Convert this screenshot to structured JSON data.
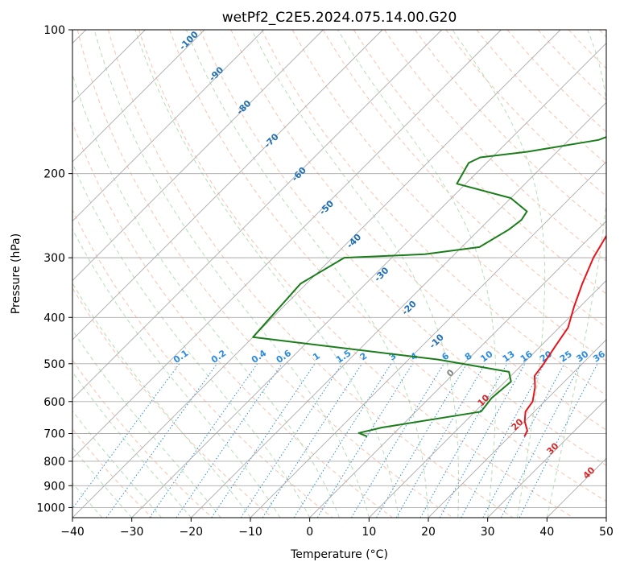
{
  "chart_data": {
    "type": "line",
    "title": "wetPf2_C2E5.2024.075.14.00.G20",
    "xlabel": "Temperature (°C)",
    "ylabel": "Pressure (hPa)",
    "xlim": [
      -40,
      50
    ],
    "ylim": [
      1050,
      100
    ],
    "x_ticks": [
      -40,
      -30,
      -20,
      -10,
      0,
      10,
      20,
      30,
      40,
      50
    ],
    "x_tick_labels": [
      "−40",
      "−30",
      "−20",
      "−10",
      "0",
      "10",
      "20",
      "30",
      "40",
      "50"
    ],
    "y_ticks": [
      100,
      200,
      300,
      400,
      500,
      600,
      700,
      800,
      900,
      1000
    ],
    "y_tick_labels": [
      "100",
      "200",
      "300",
      "400",
      "500",
      "600",
      "700",
      "800",
      "900",
      "1000"
    ],
    "colors": {
      "temperature": "#e8141b",
      "dewpoint": "#1a7d1a",
      "isotherm_label": "#1f6fb2",
      "mixing_label": "#2b8be0",
      "moist_label": "#d62728",
      "grid": "#aaaaaa"
    },
    "series": [
      {
        "name": "temperature",
        "points": [
          [
            10.5,
            100
          ],
          [
            11.0,
            110
          ],
          [
            10.0,
            125
          ],
          [
            9.0,
            140
          ],
          [
            8.5,
            160
          ],
          [
            9.0,
            180
          ],
          [
            10.0,
            200
          ],
          [
            9.0,
            215
          ],
          [
            6.0,
            235
          ],
          [
            3.0,
            255
          ],
          [
            2.5,
            270
          ],
          [
            4.0,
            300
          ],
          [
            6.5,
            340
          ],
          [
            9.0,
            380
          ],
          [
            11.5,
            420
          ],
          [
            12.5,
            460
          ],
          [
            13.5,
            500
          ],
          [
            14.0,
            530
          ],
          [
            16.0,
            560
          ],
          [
            18.0,
            600
          ],
          [
            18.5,
            630
          ],
          [
            20.0,
            660
          ],
          [
            22.0,
            690
          ],
          [
            22.5,
            710
          ]
        ]
      },
      {
        "name": "dewpoint",
        "points": [
          [
            0.5,
            100
          ],
          [
            -3.0,
            110
          ],
          [
            -6.0,
            125
          ],
          [
            -6.5,
            135
          ],
          [
            -11.0,
            150
          ],
          [
            -11.5,
            160
          ],
          [
            -15.0,
            170
          ],
          [
            -25.0,
            180
          ],
          [
            -32.0,
            185
          ],
          [
            -33.0,
            190
          ],
          [
            -31.5,
            210
          ],
          [
            -20.0,
            225
          ],
          [
            -15.0,
            240
          ],
          [
            -14.5,
            250
          ],
          [
            -15.0,
            262
          ],
          [
            -17.0,
            285
          ],
          [
            -25.0,
            295
          ],
          [
            -38.0,
            300
          ],
          [
            -41.0,
            340
          ],
          [
            -40.0,
            440
          ],
          [
            -5.0,
            490
          ],
          [
            9.0,
            520
          ],
          [
            11.0,
            545
          ],
          [
            10.5,
            590
          ],
          [
            11.0,
            630
          ],
          [
            -3.0,
            680
          ],
          [
            -6.0,
            698
          ],
          [
            -4.0,
            710
          ]
        ]
      }
    ],
    "isotherm_labels": [
      "-100",
      "-90",
      "-80",
      "-70",
      "-60",
      "-50",
      "-40",
      "-30",
      "-20",
      "-10"
    ],
    "mixing_ratio_labels": [
      "0.1",
      "0.2",
      "0.4",
      "0.6",
      "1",
      "1.5",
      "2",
      "3",
      "4",
      "6",
      "8",
      "10",
      "13",
      "16",
      "20",
      "25",
      "30",
      "36"
    ],
    "moist_adiabat_labels": [
      "0",
      "10",
      "20",
      "30",
      "40"
    ]
  }
}
